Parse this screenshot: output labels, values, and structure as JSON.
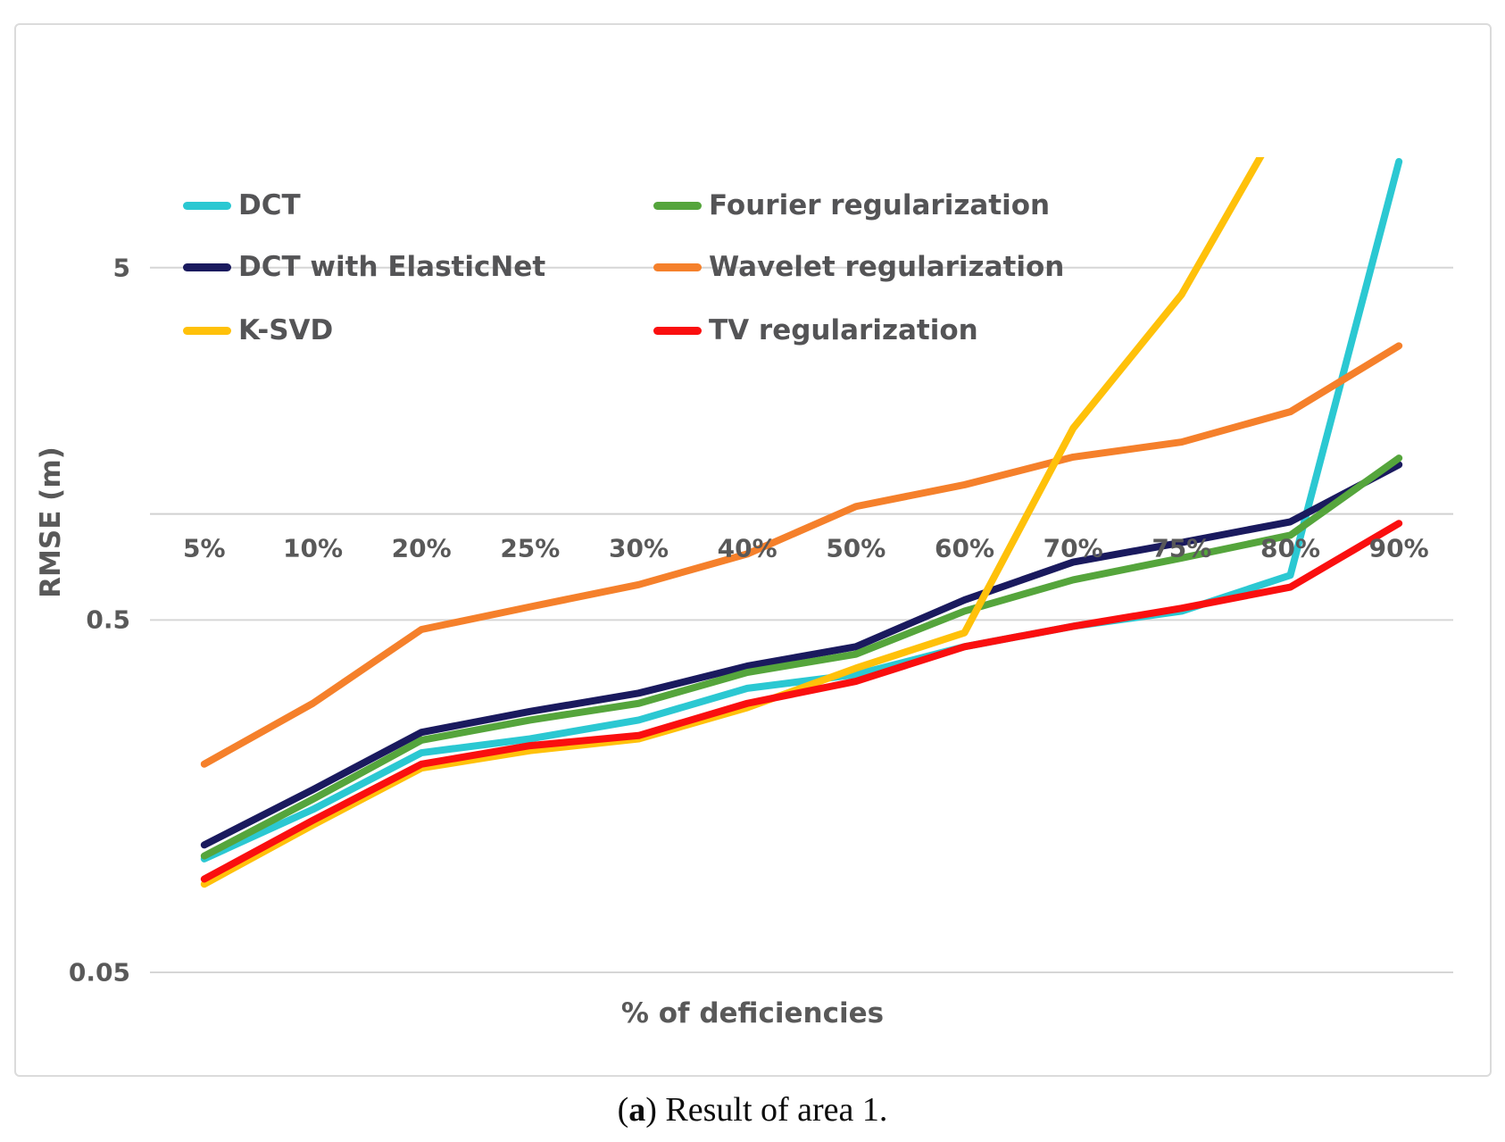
{
  "caption": {
    "open": "(",
    "letter": "a",
    "rest": ") Result of area 1."
  },
  "chart_data": {
    "type": "line",
    "title": "",
    "xlabel": "% of deficiencies",
    "ylabel": "RMSE (m)",
    "y_scale": "log",
    "y_axis_range": [
      0.05,
      10
    ],
    "y_axis_ticks": [
      "5",
      "0.5",
      "0.05"
    ],
    "y_axis_tick_values": [
      5,
      0.5,
      0.05
    ],
    "x_axis_crosses_at": 1,
    "grid": true,
    "legend_position": "inside top-left, two columns",
    "categories": [
      "5%",
      "10%",
      "20%",
      "25%",
      "30%",
      "40%",
      "50%",
      "60%",
      "70%",
      "75%",
      "80%",
      "90%"
    ],
    "series": [
      {
        "name": "DCT",
        "color": "#2BC8D2",
        "values": [
          0.105,
          0.145,
          0.21,
          0.23,
          0.26,
          0.32,
          0.35,
          0.42,
          0.48,
          0.53,
          0.67,
          10
        ]
      },
      {
        "name": "DCT with ElasticNet",
        "color": "#1A1A5E",
        "values": [
          0.115,
          0.165,
          0.24,
          0.275,
          0.31,
          0.37,
          0.42,
          0.57,
          0.73,
          0.83,
          0.95,
          1.38
        ]
      },
      {
        "name": "K-SVD",
        "color": "#FFC10A",
        "clipped_above_axis_max": true,
        "values": [
          0.089,
          0.131,
          0.19,
          0.213,
          0.23,
          0.282,
          0.365,
          0.46,
          1.75,
          4.2,
          14.5,
          null
        ]
      },
      {
        "name": "Fourier regularization",
        "color": "#55A53C",
        "values": [
          0.107,
          0.155,
          0.228,
          0.26,
          0.29,
          0.355,
          0.4,
          0.53,
          0.65,
          0.75,
          0.87,
          1.44
        ]
      },
      {
        "name": "Wavelet regularization",
        "color": "#F5802B",
        "values": [
          0.195,
          0.29,
          0.47,
          0.545,
          0.63,
          0.77,
          1.05,
          1.21,
          1.45,
          1.6,
          1.95,
          3.0
        ]
      },
      {
        "name": "TV regularization",
        "color": "#FA0F0F",
        "values": [
          0.092,
          0.135,
          0.195,
          0.22,
          0.235,
          0.29,
          0.335,
          0.42,
          0.48,
          0.54,
          0.62,
          0.94
        ]
      }
    ],
    "colors": {
      "gridline": "#D6D6D6",
      "axis_line": "#D0D0D0",
      "axis_text": "#595959",
      "legend_text": "#545456"
    }
  }
}
